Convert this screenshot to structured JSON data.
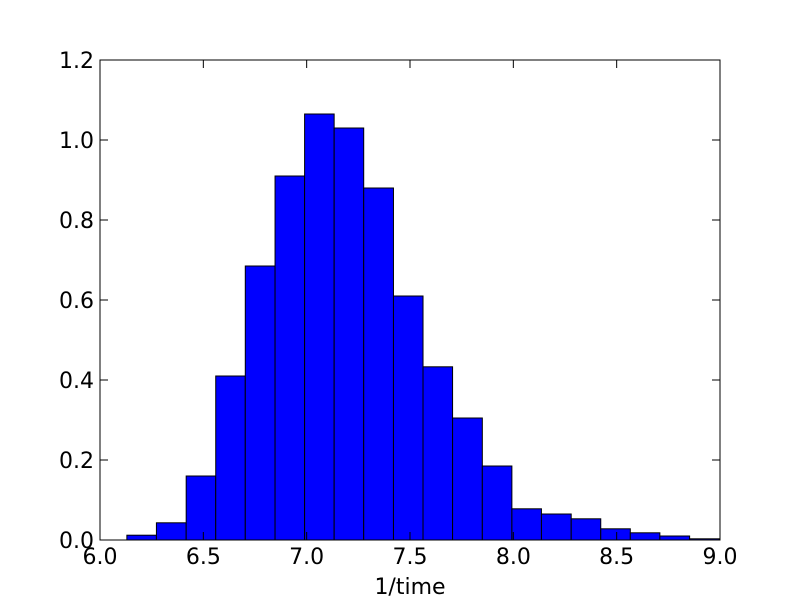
{
  "chart_data": {
    "type": "histogram",
    "xlabel": "1/time",
    "bins": [
      6.13,
      6.273,
      6.417,
      6.56,
      6.703,
      6.847,
      6.99,
      7.133,
      7.276,
      7.42,
      7.563,
      7.706,
      7.85,
      7.993,
      8.136,
      8.28,
      8.423,
      8.566,
      8.709,
      8.853,
      8.996
    ],
    "values": [
      0.012,
      0.043,
      0.16,
      0.41,
      0.685,
      0.91,
      1.065,
      1.03,
      0.88,
      0.61,
      0.433,
      0.305,
      0.185,
      0.078,
      0.065,
      0.053,
      0.028,
      0.018,
      0.01,
      0.003
    ],
    "color": "#0000ff",
    "xlim": [
      6,
      9
    ],
    "xticks": [
      {
        "value": 6,
        "label": "6.0"
      },
      6.5,
      {
        "value": 7,
        "label": "7.0"
      },
      7.5,
      {
        "value": 8,
        "label": "8.0"
      },
      8.5,
      {
        "value": 9,
        "label": "9.0"
      }
    ],
    "ylim": [
      0,
      1.2
    ],
    "yticks": [
      {
        "value": 0,
        "label": "0.0"
      },
      0.2,
      0.4,
      0.6,
      0.8,
      {
        "value": 1,
        "label": "1.0"
      },
      1.2
    ]
  }
}
